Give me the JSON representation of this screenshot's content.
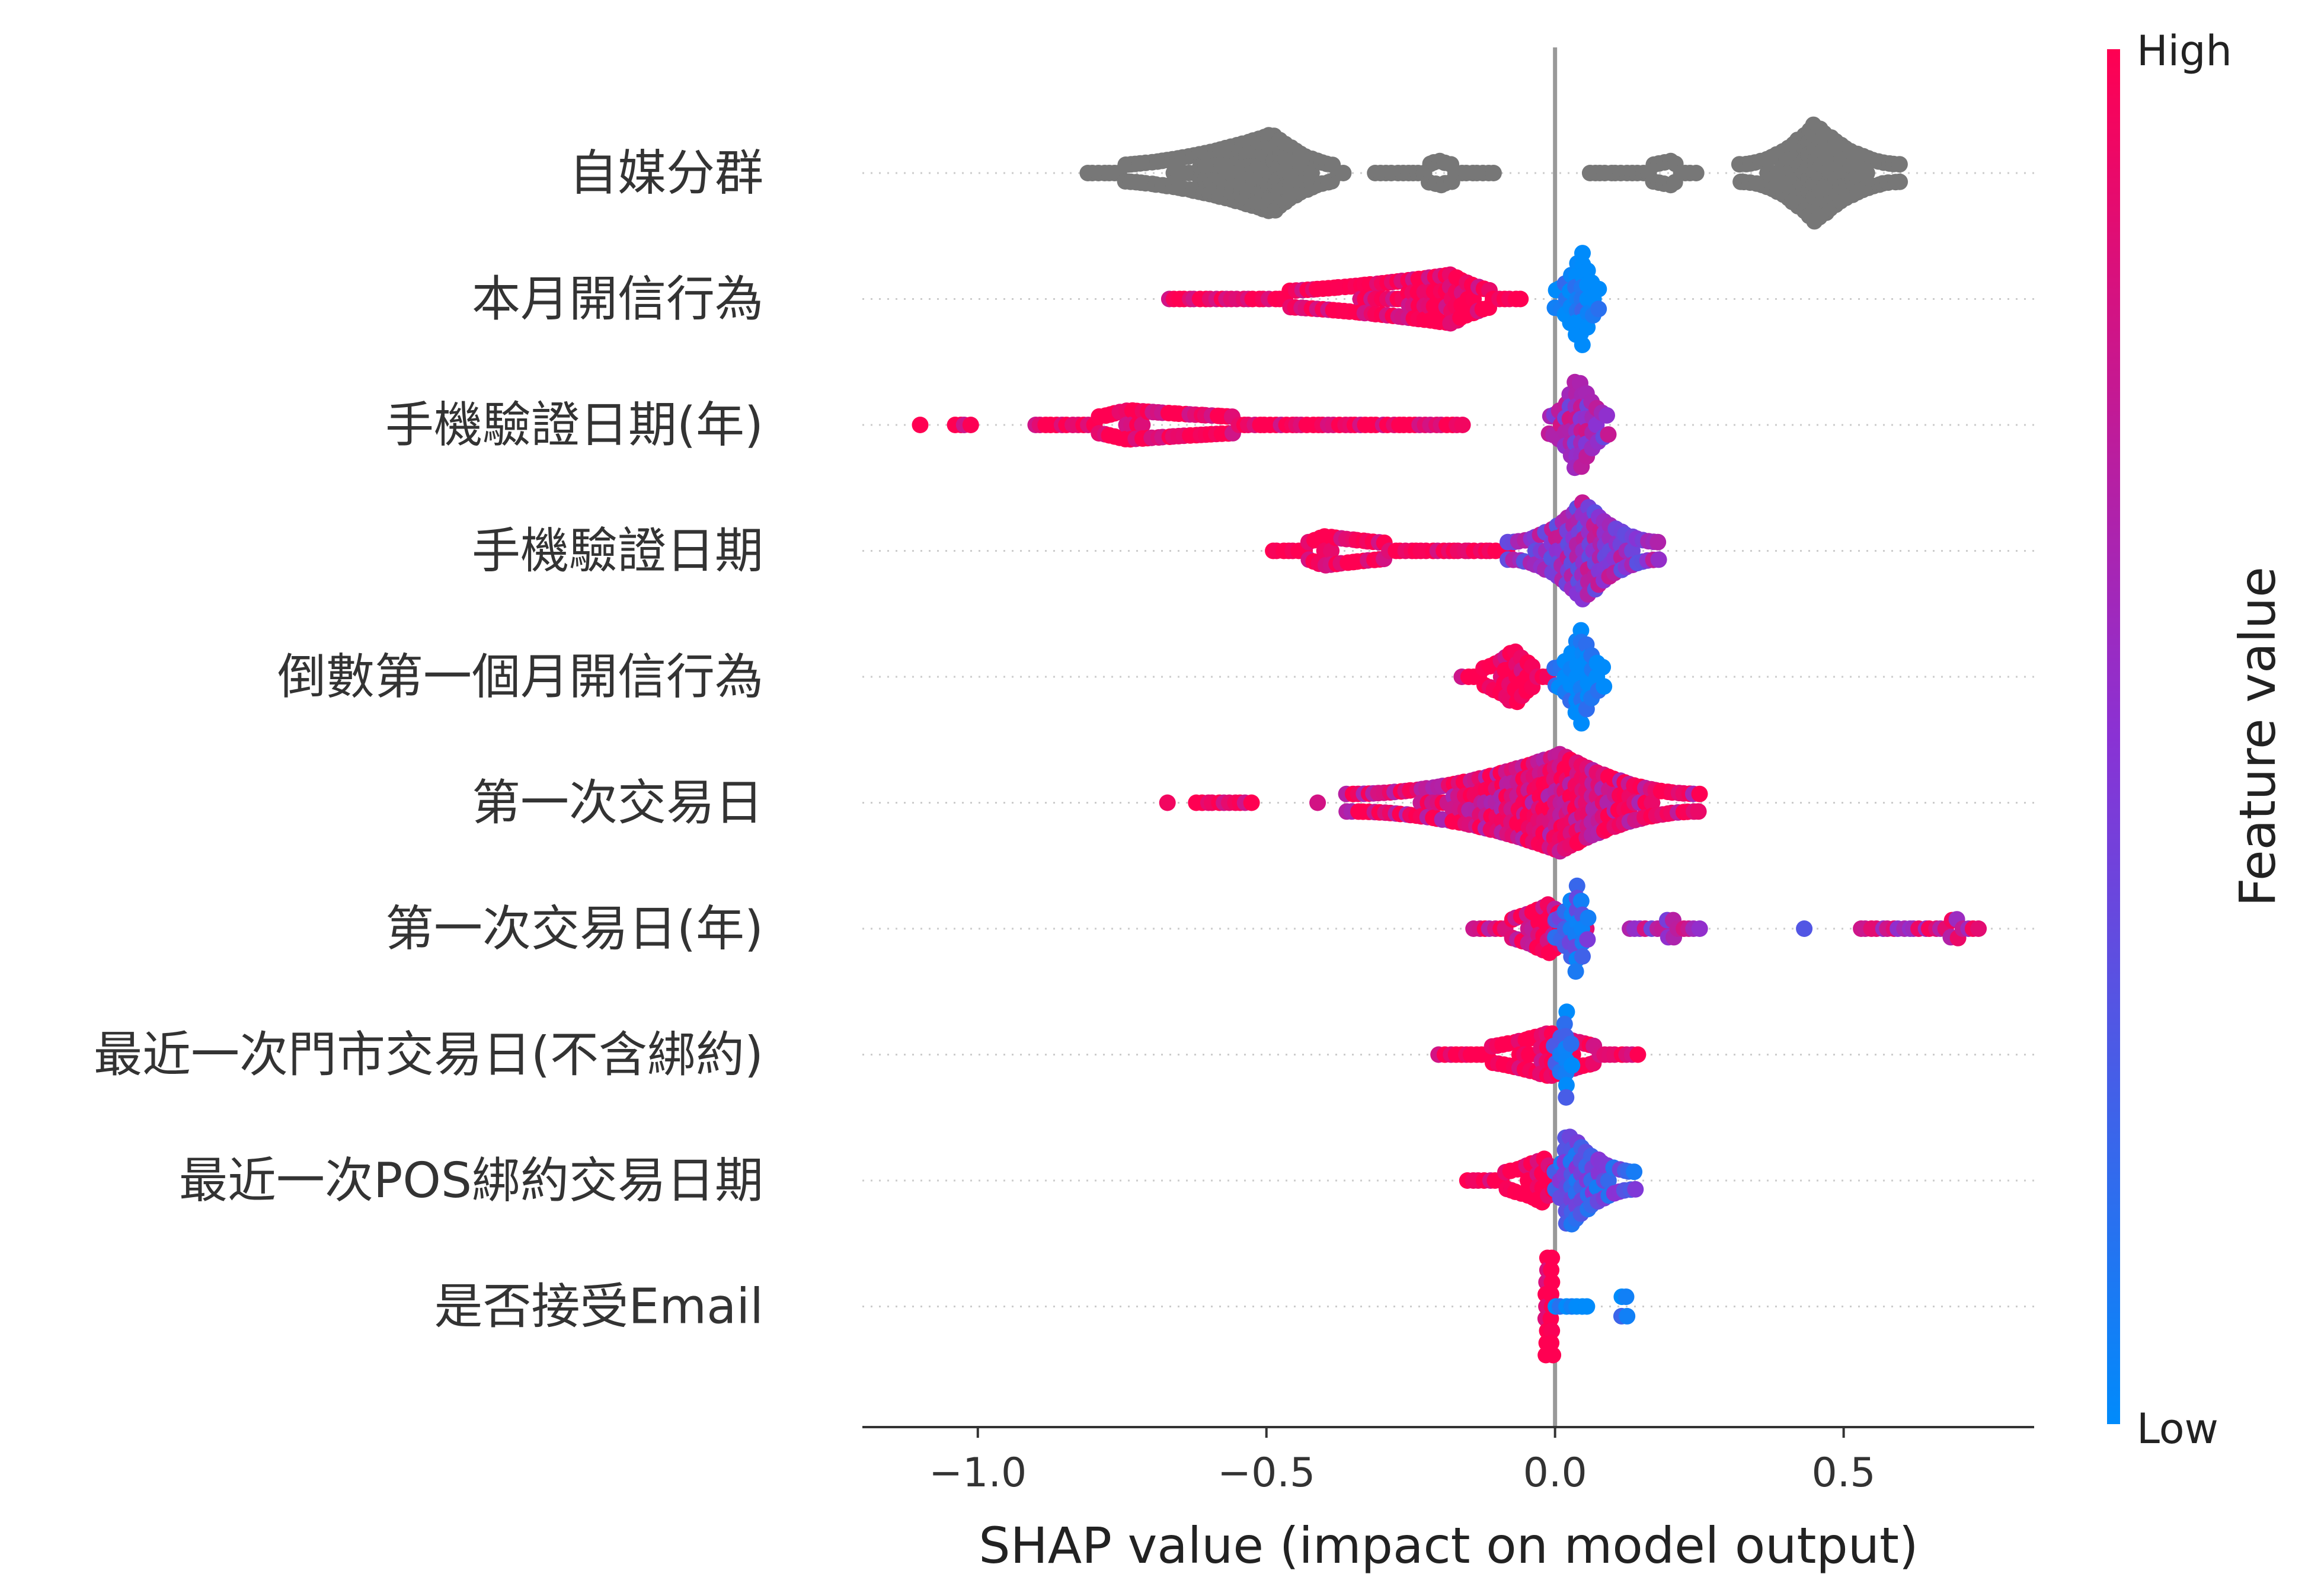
{
  "chart_data": {
    "type": "scatter",
    "subtype": "shap-beeswarm",
    "xlabel": "SHAP value (impact on model output)",
    "xlim": [
      -1.2,
      0.83
    ],
    "xticks": [
      {
        "value": -1.0,
        "label": "−1.0"
      },
      {
        "value": -0.5,
        "label": "−0.5"
      },
      {
        "value": 0.0,
        "label": "0.0"
      },
      {
        "value": 0.5,
        "label": "0.5"
      }
    ],
    "zero_line": 0.0,
    "grid": "dotted horizontal lines per feature",
    "colorbar": {
      "label": "Feature value",
      "high_label": "High",
      "low_label": "Low",
      "high_color": "#ff0052",
      "low_color": "#008bfb",
      "placement": "right"
    },
    "no_feature_value_color": "#777777",
    "features": [
      {
        "name": "自媒分群",
        "color_mode": "gray",
        "clusters": [
          {
            "min": -0.81,
            "max": -0.36,
            "peak": -0.49,
            "height": 0.8,
            "color": 0.5
          },
          {
            "min": -0.31,
            "max": -0.1,
            "peak": -0.2,
            "height": 0.25,
            "color": 0.5
          },
          {
            "min": 0.06,
            "max": 0.25,
            "peak": 0.2,
            "height": 0.25,
            "color": 0.5
          },
          {
            "min": 0.32,
            "max": 0.6,
            "peak": 0.45,
            "height": 1.0,
            "color": 0.5
          }
        ]
      },
      {
        "name": "本月開信行為",
        "color_mode": "value",
        "clusters": [
          {
            "min": -0.67,
            "max": -0.06,
            "peak": -0.18,
            "height": 0.5,
            "color": 1.0
          },
          {
            "min": 0.0,
            "max": 0.08,
            "peak": 0.045,
            "height": 1.0,
            "color": 0.0
          }
        ]
      },
      {
        "name": "手機驗證日期(年)",
        "color_mode": "value",
        "clusters": [
          {
            "min": -1.1,
            "max": -1.1,
            "peak": -1.1,
            "height": 0.15,
            "color": 1.0
          },
          {
            "min": -1.04,
            "max": -1.01,
            "peak": -1.02,
            "height": 0.15,
            "color": 1.0
          },
          {
            "min": -0.9,
            "max": -0.16,
            "peak": -0.74,
            "height": 0.3,
            "color": 1.0
          },
          {
            "min": -0.01,
            "max": 0.1,
            "peak": 0.04,
            "height": 1.0,
            "color": 0.6
          }
        ]
      },
      {
        "name": "手機驗證日期",
        "color_mode": "value",
        "clusters": [
          {
            "min": -0.49,
            "max": -0.08,
            "peak": -0.4,
            "height": 0.3,
            "color": 1.0
          },
          {
            "min": -0.08,
            "max": 0.18,
            "peak": 0.05,
            "height": 1.0,
            "color": 0.55
          }
        ]
      },
      {
        "name": "倒數第一個月開信行為",
        "color_mode": "value",
        "clusters": [
          {
            "min": -0.16,
            "max": -0.01,
            "peak": -0.07,
            "height": 0.55,
            "color": 1.0
          },
          {
            "min": 0.0,
            "max": 0.09,
            "peak": 0.045,
            "height": 1.0,
            "color": 0.0
          }
        ]
      },
      {
        "name": "第一次交易日",
        "color_mode": "value",
        "clusters": [
          {
            "min": -0.67,
            "max": -0.67,
            "peak": -0.67,
            "height": 0.15,
            "color": 1.0
          },
          {
            "min": -0.62,
            "max": -0.52,
            "peak": -0.6,
            "height": 0.15,
            "color": 1.0
          },
          {
            "min": -0.41,
            "max": -0.41,
            "peak": -0.41,
            "height": 0.15,
            "color": 1.0
          },
          {
            "min": -0.36,
            "max": 0.25,
            "peak": 0.01,
            "height": 1.0,
            "color": 0.85
          }
        ]
      },
      {
        "name": "第一次交易日(年)",
        "color_mode": "value",
        "clusters": [
          {
            "min": -0.14,
            "max": 0.06,
            "peak": -0.01,
            "height": 0.5,
            "color": 0.9
          },
          {
            "min": 0.0,
            "max": 0.06,
            "peak": 0.04,
            "height": 1.0,
            "color": 0.25
          },
          {
            "min": 0.13,
            "max": 0.25,
            "peak": 0.2,
            "height": 0.2,
            "color": 0.6
          },
          {
            "min": 0.43,
            "max": 0.43,
            "peak": 0.43,
            "height": 0.15,
            "color": 0.5
          },
          {
            "min": 0.53,
            "max": 0.74,
            "peak": 0.7,
            "height": 0.2,
            "color": 0.75
          }
        ]
      },
      {
        "name": "最近一次門市交易日(不含綁約)",
        "color_mode": "value",
        "clusters": [
          {
            "min": -0.2,
            "max": 0.15,
            "peak": -0.01,
            "height": 0.45,
            "color": 1.0
          },
          {
            "min": 0.0,
            "max": 0.03,
            "peak": 0.02,
            "height": 1.0,
            "color": 0.1
          }
        ]
      },
      {
        "name": "最近一次POS綁約交易日期",
        "color_mode": "value",
        "clusters": [
          {
            "min": -0.15,
            "max": 0.02,
            "peak": -0.02,
            "height": 0.45,
            "color": 1.0
          },
          {
            "min": 0.0,
            "max": 0.14,
            "peak": 0.02,
            "height": 1.0,
            "color": 0.3
          }
        ]
      },
      {
        "name": "是否接受Email",
        "color_mode": "value",
        "clusters": [
          {
            "min": -0.015,
            "max": -0.005,
            "peak": -0.01,
            "height": 1.0,
            "color": 1.0
          },
          {
            "min": 0.0,
            "max": 0.06,
            "peak": 0.03,
            "height": 0.15,
            "color": 0.0
          },
          {
            "min": 0.115,
            "max": 0.125,
            "peak": 0.12,
            "height": 0.2,
            "color": 0.0
          }
        ]
      }
    ]
  }
}
